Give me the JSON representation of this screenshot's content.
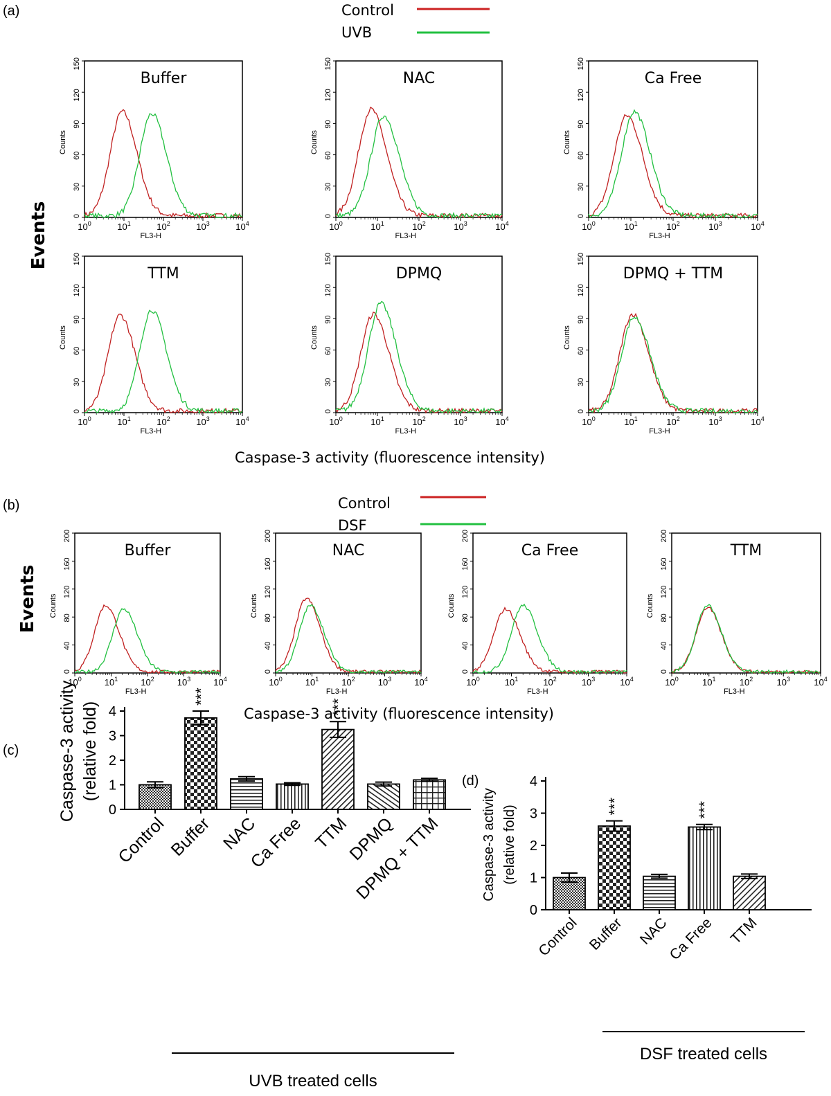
{
  "chart_data": [
    {
      "type": "histogram",
      "panel": "(a)",
      "legend": [
        {
          "name": "Control",
          "color": "#cc2222"
        },
        {
          "name": "UVB",
          "color": "#22c040"
        }
      ],
      "ylabel": "Events",
      "xlabel": "Caspase-3 activity (fluorescence intensity)",
      "axis_xlabel": "FL3-H",
      "axis_ylabel": "Counts",
      "x_scale": "log",
      "x_ticks": [
        "10",
        "10",
        "10",
        "10",
        "10"
      ],
      "x_tick_exp": [
        "0",
        "1",
        "2",
        "3",
        "4"
      ],
      "y_ticks": [
        "0",
        "30",
        "60",
        "90",
        "120",
        "150"
      ],
      "ylim": [
        0,
        150
      ],
      "subplots": [
        {
          "title": "Buffer",
          "peaks": {
            "Control": {
              "x": 9,
              "y": 100
            },
            "UVB": {
              "x": 50,
              "y": 98
            }
          }
        },
        {
          "title": "NAC",
          "peaks": {
            "Control": {
              "x": 7,
              "y": 102
            },
            "UVB": {
              "x": 14,
              "y": 96
            }
          }
        },
        {
          "title": "Ca Free",
          "peaks": {
            "Control": {
              "x": 8,
              "y": 96
            },
            "UVB": {
              "x": 12,
              "y": 100
            }
          }
        },
        {
          "title": "TTM",
          "peaks": {
            "Control": {
              "x": 8,
              "y": 92
            },
            "UVB": {
              "x": 50,
              "y": 97
            }
          }
        },
        {
          "title": "DPMQ",
          "peaks": {
            "Control": {
              "x": 8,
              "y": 93
            },
            "UVB": {
              "x": 12,
              "y": 103
            }
          }
        },
        {
          "title": "DPMQ + TTM",
          "peaks": {
            "Control": {
              "x": 11,
              "y": 93
            },
            "UVB": {
              "x": 12,
              "y": 90
            }
          }
        }
      ]
    },
    {
      "type": "histogram",
      "panel": "(b)",
      "legend": [
        {
          "name": "Control",
          "color": "#cc2222"
        },
        {
          "name": "DSF",
          "color": "#22c040"
        }
      ],
      "ylabel": "Events",
      "xlabel": "Caspase-3 activity (fluorescence intensity)",
      "axis_xlabel": "FL3-H",
      "axis_ylabel": "Counts",
      "x_scale": "log",
      "x_ticks": [
        "10",
        "10",
        "10",
        "10",
        "10"
      ],
      "x_tick_exp": [
        "0",
        "1",
        "2",
        "3",
        "4"
      ],
      "y_ticks": [
        "0",
        "40",
        "80",
        "120",
        "160",
        "200"
      ],
      "ylim": [
        0,
        200
      ],
      "subplots": [
        {
          "title": "Buffer",
          "peaks": {
            "Control": {
              "x": 7,
              "y": 95
            },
            "UVB": {
              "x": 22,
              "y": 90
            }
          }
        },
        {
          "title": "NAC",
          "peaks": {
            "Control": {
              "x": 7,
              "y": 105
            },
            "UVB": {
              "x": 9,
              "y": 95
            }
          }
        },
        {
          "title": "Ca Free",
          "peaks": {
            "Control": {
              "x": 7,
              "y": 90
            },
            "UVB": {
              "x": 20,
              "y": 95
            }
          }
        },
        {
          "title": "TTM",
          "peaks": {
            "Control": {
              "x": 9,
              "y": 92
            },
            "UVB": {
              "x": 9,
              "y": 95
            }
          }
        }
      ]
    },
    {
      "type": "bar",
      "panel": "(c)",
      "categories": [
        "Control",
        "Buffer",
        "NAC",
        "Ca Free",
        "TTM",
        "DPMQ",
        "DPMQ + TTM"
      ],
      "values": [
        1.0,
        3.72,
        1.24,
        1.03,
        3.25,
        1.03,
        1.2
      ],
      "errors": [
        0.12,
        0.28,
        0.09,
        0.05,
        0.32,
        0.08,
        0.06
      ],
      "significance": [
        "",
        "***",
        "",
        "",
        "***",
        "",
        ""
      ],
      "ylabel_line1": "Caspase-3  activity",
      "ylabel_line2": "(relative  fold)",
      "y_ticks": [
        "0",
        "1",
        "2",
        "3",
        "4"
      ],
      "ylim": [
        0,
        4
      ],
      "group_label": "UVB  treated  cells"
    },
    {
      "type": "bar",
      "panel": "(d)",
      "categories": [
        "Control",
        "Buffer",
        "NAC",
        "Ca Free",
        "TTM"
      ],
      "values": [
        1.0,
        2.6,
        1.04,
        2.57,
        1.04
      ],
      "errors": [
        0.14,
        0.16,
        0.06,
        0.08,
        0.07
      ],
      "significance": [
        "",
        "***",
        "",
        "***",
        ""
      ],
      "ylabel_line1": "Caspase-3 activity",
      "ylabel_line2": "(relative fold)",
      "y_ticks": [
        "0",
        "1",
        "2",
        "3",
        "4"
      ],
      "ylim": [
        0,
        4
      ],
      "group_label": "DSF treated cells"
    }
  ]
}
